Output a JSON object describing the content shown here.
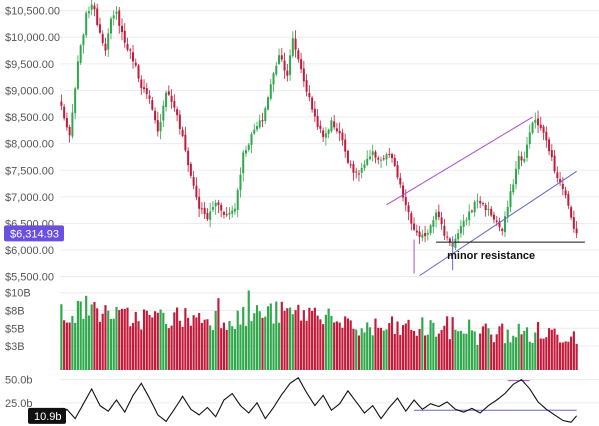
{
  "chart_data": [
    {
      "type": "candlestick",
      "ylim": [
        5400,
        10700
      ],
      "yticks": [
        {
          "value": 10500,
          "label": "$10,500.00"
        },
        {
          "value": 10000,
          "label": "$10,000.00"
        },
        {
          "value": 9500,
          "label": "$9,500.00"
        },
        {
          "value": 9000,
          "label": "$9,000.00"
        },
        {
          "value": 8500,
          "label": "$8,500.00"
        },
        {
          "value": 8000,
          "label": "$8,000.00"
        },
        {
          "value": 7500,
          "label": "$7,500.00"
        },
        {
          "value": 7000,
          "label": "$7,000.00"
        },
        {
          "value": 6500,
          "label": "$6,500.00"
        },
        {
          "value": 6000,
          "label": "$6,000.00"
        },
        {
          "value": 5500,
          "label": "$5,500.00"
        }
      ],
      "last_price": {
        "value": 6314.93,
        "label": "$6,314.93",
        "color": "#6b4fe0"
      },
      "annotation": {
        "text": "minor resistance",
        "value": 6150
      },
      "path_anchors": [
        [
          0,
          8700
        ],
        [
          3,
          8100
        ],
        [
          6,
          9500
        ],
        [
          9,
          10400
        ],
        [
          11,
          10650
        ],
        [
          14,
          10100
        ],
        [
          16,
          9800
        ],
        [
          18,
          10300
        ],
        [
          20,
          10450
        ],
        [
          23,
          9900
        ],
        [
          26,
          9600
        ],
        [
          29,
          9100
        ],
        [
          32,
          8800
        ],
        [
          35,
          8200
        ],
        [
          38,
          9000
        ],
        [
          41,
          8700
        ],
        [
          44,
          8100
        ],
        [
          47,
          7400
        ],
        [
          50,
          6800
        ],
        [
          53,
          6600
        ],
        [
          56,
          6900
        ],
        [
          60,
          6650
        ],
        [
          63,
          6800
        ],
        [
          66,
          7800
        ],
        [
          70,
          8250
        ],
        [
          73,
          8450
        ],
        [
          76,
          9100
        ],
        [
          79,
          9700
        ],
        [
          82,
          9300
        ],
        [
          84,
          9950
        ],
        [
          86,
          9600
        ],
        [
          89,
          9000
        ],
        [
          92,
          8500
        ],
        [
          95,
          8100
        ],
        [
          98,
          8400
        ],
        [
          101,
          8200
        ],
        [
          104,
          7700
        ],
        [
          107,
          7400
        ],
        [
          110,
          7600
        ],
        [
          113,
          7800
        ],
        [
          116,
          7700
        ],
        [
          119,
          7800
        ],
        [
          121,
          7550
        ],
        [
          124,
          7000
        ],
        [
          127,
          6500
        ],
        [
          130,
          6200
        ],
        [
          133,
          6350
        ],
        [
          136,
          6750
        ],
        [
          139,
          6300
        ],
        [
          142,
          6100
        ],
        [
          145,
          6400
        ],
        [
          148,
          6700
        ],
        [
          151,
          6950
        ],
        [
          154,
          6800
        ],
        [
          157,
          6600
        ],
        [
          160,
          6350
        ],
        [
          163,
          7050
        ],
        [
          166,
          7750
        ],
        [
          168,
          7700
        ],
        [
          171,
          8450
        ],
        [
          174,
          8300
        ],
        [
          177,
          7900
        ],
        [
          179,
          7500
        ],
        [
          182,
          7200
        ],
        [
          185,
          6600
        ],
        [
          187,
          6315
        ]
      ],
      "channels": [
        {
          "color": "#a64ccc",
          "points": [
            [
              118,
              6850
            ],
            [
              171,
              8500
            ]
          ]
        },
        {
          "color": "#6666cc",
          "points": [
            [
              130,
              5520
            ],
            [
              187,
              7480
            ]
          ]
        },
        {
          "color": "#111111",
          "points": [
            [
              136,
              6150
            ],
            [
              190,
              6150
            ]
          ]
        }
      ],
      "markers": [
        {
          "x": 128,
          "value": 5560,
          "label": "",
          "color": "#a64ccc"
        },
        {
          "x": 142,
          "value": 5620,
          "label": "",
          "color": "#6666cc"
        }
      ]
    },
    {
      "type": "bar",
      "ylim": [
        0,
        11
      ],
      "yticks": [
        {
          "value": 10,
          "label": "$10B"
        },
        {
          "value": 7.7,
          "label": "$8B"
        },
        {
          "value": 5.4,
          "label": "$5B"
        },
        {
          "value": 3.1,
          "label": "$3B"
        }
      ],
      "series_colors": {
        "up": "#2ea84a",
        "down": "#c41a3a"
      }
    },
    {
      "type": "line",
      "ylim": [
        0,
        55
      ],
      "yticks": [
        {
          "value": 50,
          "label": "50.0b"
        },
        {
          "value": 25,
          "label": "25.0b"
        }
      ],
      "last_value": {
        "value": 10.9,
        "label": "10.9b",
        "color": "#111111"
      },
      "trend_color": "#6666cc",
      "anchors": [
        [
          0,
          12
        ],
        [
          2,
          18
        ],
        [
          5,
          8
        ],
        [
          8,
          24
        ],
        [
          11,
          40
        ],
        [
          14,
          22
        ],
        [
          17,
          16
        ],
        [
          20,
          28
        ],
        [
          23,
          15
        ],
        [
          26,
          33
        ],
        [
          29,
          46
        ],
        [
          32,
          30
        ],
        [
          35,
          12
        ],
        [
          38,
          5
        ],
        [
          41,
          18
        ],
        [
          44,
          32
        ],
        [
          47,
          18
        ],
        [
          50,
          12
        ],
        [
          53,
          20
        ],
        [
          56,
          10
        ],
        [
          59,
          28
        ],
        [
          62,
          35
        ],
        [
          65,
          22
        ],
        [
          68,
          14
        ],
        [
          71,
          25
        ],
        [
          74,
          8
        ],
        [
          77,
          20
        ],
        [
          80,
          34
        ],
        [
          83,
          46
        ],
        [
          86,
          52
        ],
        [
          89,
          36
        ],
        [
          92,
          22
        ],
        [
          95,
          33
        ],
        [
          98,
          17
        ],
        [
          101,
          24
        ],
        [
          104,
          38
        ],
        [
          107,
          26
        ],
        [
          110,
          14
        ],
        [
          113,
          22
        ],
        [
          116,
          8
        ],
        [
          119,
          20
        ],
        [
          122,
          30
        ],
        [
          125,
          16
        ],
        [
          128,
          28
        ],
        [
          131,
          18
        ],
        [
          134,
          24
        ],
        [
          137,
          21
        ],
        [
          140,
          26
        ],
        [
          143,
          18
        ],
        [
          146,
          15
        ],
        [
          149,
          19
        ],
        [
          152,
          14
        ],
        [
          155,
          22
        ],
        [
          158,
          28
        ],
        [
          161,
          35
        ],
        [
          164,
          45
        ],
        [
          167,
          50
        ],
        [
          170,
          40
        ],
        [
          173,
          26
        ],
        [
          176,
          18
        ],
        [
          179,
          12
        ],
        [
          182,
          6
        ],
        [
          185,
          4
        ],
        [
          187,
          11
        ]
      ]
    }
  ]
}
